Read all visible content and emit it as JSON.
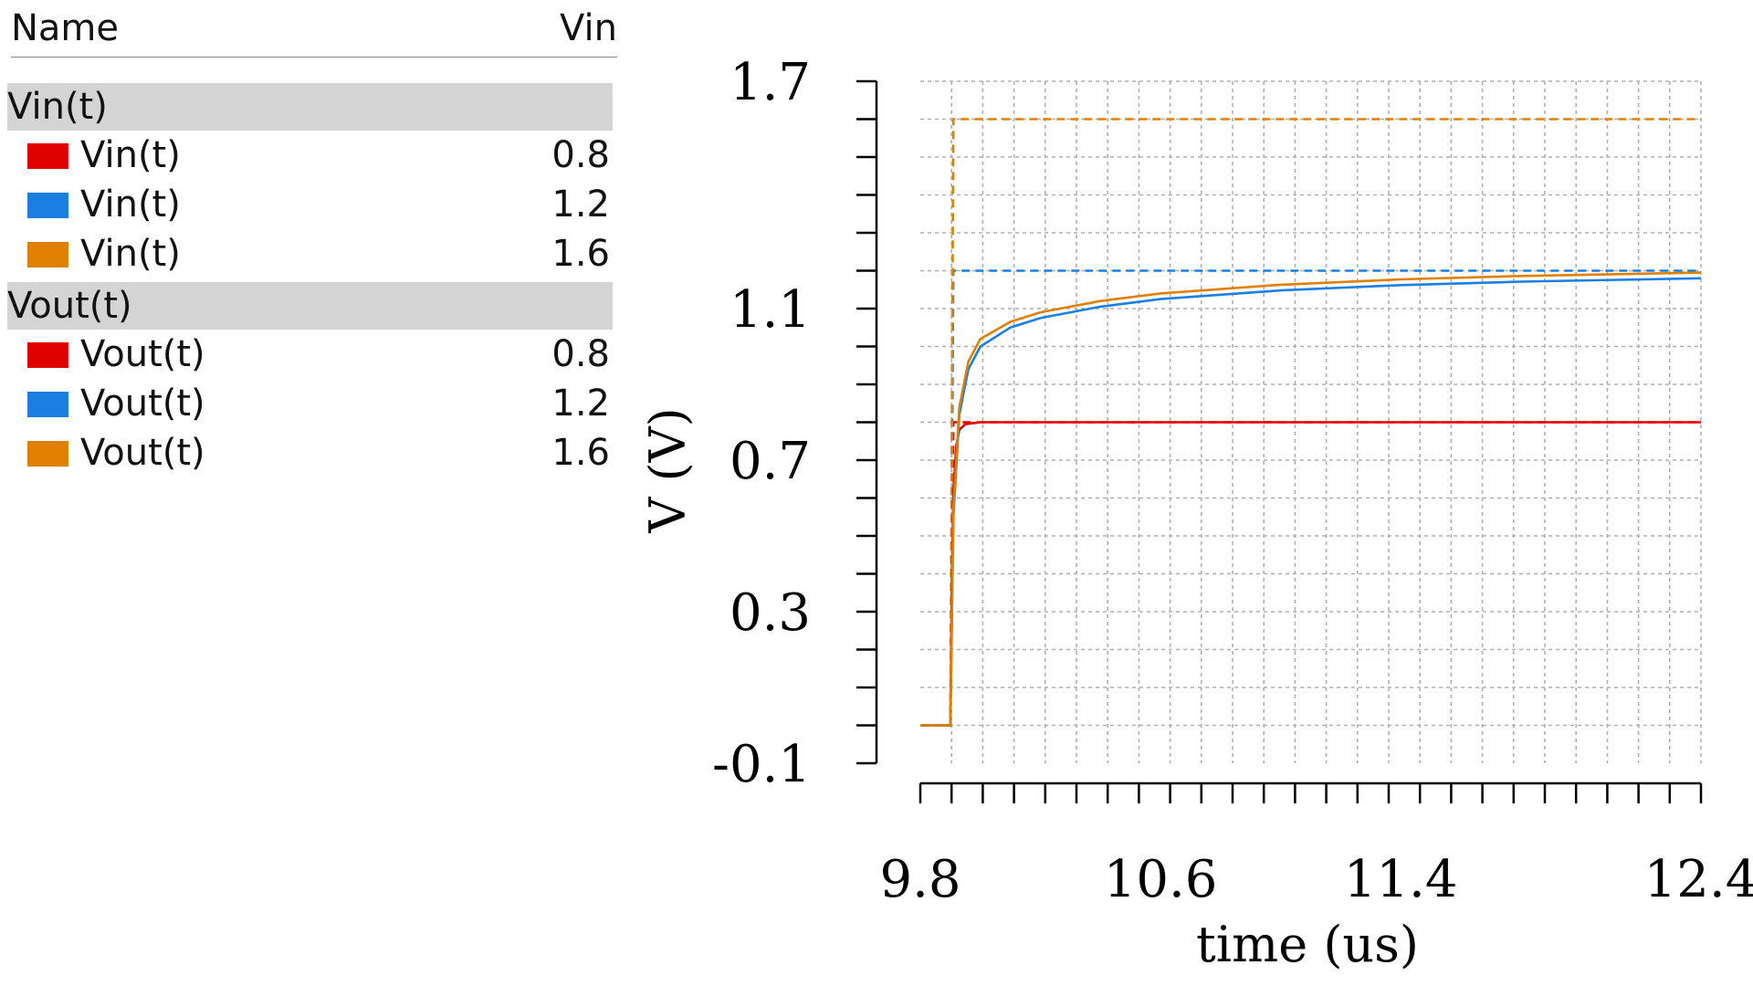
{
  "legend": {
    "header": {
      "name": "Name",
      "value": "Vin"
    },
    "groups": [
      {
        "title": "Vin(t)",
        "series": [
          {
            "label": "Vin(t)",
            "value": "0.8",
            "color": "#e00000"
          },
          {
            "label": "Vin(t)",
            "value": "1.2",
            "color": "#1a7fe0"
          },
          {
            "label": "Vin(t)",
            "value": "1.6",
            "color": "#e08000"
          }
        ]
      },
      {
        "title": "Vout(t)",
        "series": [
          {
            "label": "Vout(t)",
            "value": "0.8",
            "color": "#e00000"
          },
          {
            "label": "Vout(t)",
            "value": "1.2",
            "color": "#1a7fe0"
          },
          {
            "label": "Vout(t)",
            "value": "1.6",
            "color": "#e08000"
          }
        ]
      }
    ]
  },
  "chart_data": {
    "type": "line",
    "xlabel": "time (us)",
    "ylabel": "V (V)",
    "xlim": [
      9.8,
      12.4
    ],
    "ylim": [
      -0.1,
      1.7
    ],
    "xticks": [
      "9.8",
      "10.6",
      "11.4",
      "12.4"
    ],
    "yticks": [
      "1.7",
      "1.1",
      "0.7",
      "0.3",
      "-0.1"
    ],
    "grid": true,
    "series": [
      {
        "name": "Vin(t) 0.8",
        "color": "#e00000",
        "style": "dashed",
        "x": [
          9.8,
          9.9,
          9.91,
          12.4
        ],
        "y": [
          0,
          0,
          0.8,
          0.8
        ]
      },
      {
        "name": "Vin(t) 1.2",
        "color": "#1a7fe0",
        "style": "dashed",
        "x": [
          9.8,
          9.9,
          9.91,
          12.4
        ],
        "y": [
          0,
          0,
          1.2,
          1.2
        ]
      },
      {
        "name": "Vin(t) 1.6",
        "color": "#e08000",
        "style": "dashed",
        "x": [
          9.8,
          9.9,
          9.91,
          12.4
        ],
        "y": [
          0,
          0,
          1.6,
          1.6
        ]
      },
      {
        "name": "Vout(t) 0.8",
        "color": "#e00000",
        "style": "solid",
        "x": [
          9.8,
          9.9,
          9.905,
          9.91,
          9.92,
          9.93,
          9.95,
          10.0,
          12.4
        ],
        "y": [
          0,
          0,
          0.38,
          0.62,
          0.74,
          0.78,
          0.795,
          0.8,
          0.8
        ]
      },
      {
        "name": "Vout(t) 1.2",
        "color": "#1a7fe0",
        "style": "solid",
        "x": [
          9.8,
          9.9,
          9.91,
          9.93,
          9.96,
          10.0,
          10.1,
          10.2,
          10.4,
          10.6,
          11.0,
          11.4,
          11.8,
          12.4
        ],
        "y": [
          0,
          0,
          0.55,
          0.82,
          0.94,
          1.0,
          1.05,
          1.075,
          1.105,
          1.125,
          1.148,
          1.162,
          1.171,
          1.18
        ]
      },
      {
        "name": "Vout(t) 1.6",
        "color": "#e08000",
        "style": "solid",
        "x": [
          9.8,
          9.9,
          9.91,
          9.93,
          9.96,
          10.0,
          10.1,
          10.2,
          10.4,
          10.6,
          11.0,
          11.4,
          11.8,
          12.4
        ],
        "y": [
          0,
          0,
          0.57,
          0.84,
          0.96,
          1.02,
          1.065,
          1.09,
          1.12,
          1.14,
          1.163,
          1.177,
          1.186,
          1.195
        ]
      }
    ]
  }
}
